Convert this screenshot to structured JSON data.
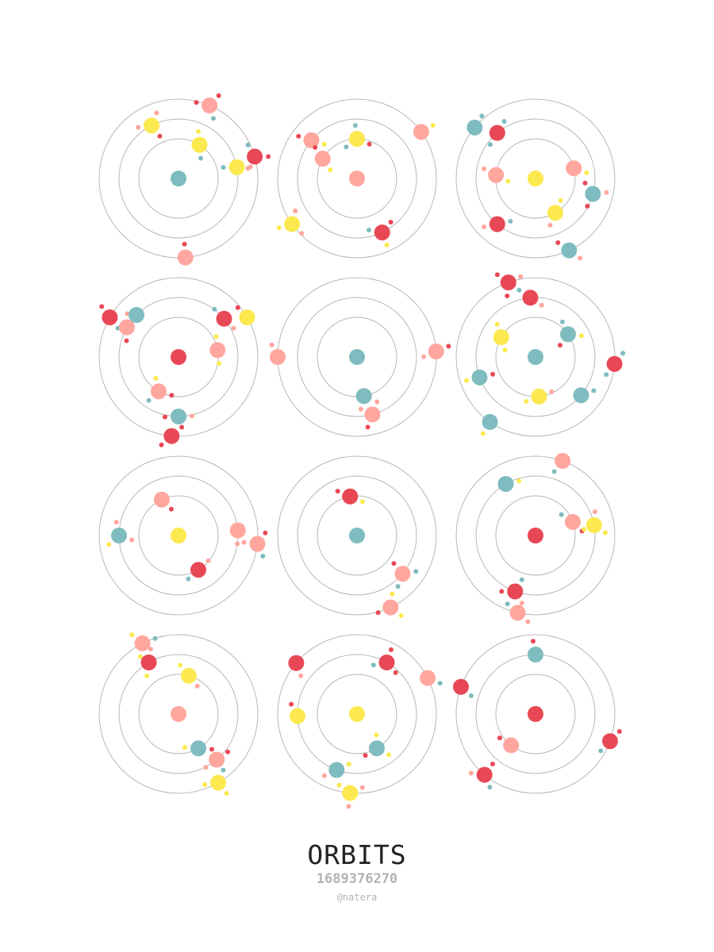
{
  "title": "ORBITS",
  "seed": "1689376270",
  "author": "@natera",
  "colors": {
    "red": "#e84855",
    "salmon": "#ffa69e",
    "yellow": "#fce94f",
    "teal": "#7fbcbf",
    "ring": "#b8b8b8",
    "background": "#ffffff"
  },
  "systems": [
    {
      "center": "teal",
      "planets": [
        {
          "ring": 3,
          "angle": 16,
          "color": "red",
          "moons": [
            "red",
            "teal",
            "salmon"
          ]
        },
        {
          "ring": 3,
          "angle": 67,
          "color": "salmon",
          "moons": [
            "red",
            "red",
            "teal"
          ]
        },
        {
          "ring": 3,
          "angle": 275,
          "color": "salmon",
          "moons": [
            "red"
          ]
        },
        {
          "ring": 2,
          "angle": 11,
          "color": "yellow",
          "moons": [
            "teal",
            "salmon"
          ]
        },
        {
          "ring": 2,
          "angle": 117,
          "color": "yellow",
          "moons": [
            "salmon",
            "red",
            "salmon"
          ]
        },
        {
          "ring": 1,
          "angle": 58,
          "color": "yellow",
          "moons": [
            "teal",
            "yellow"
          ]
        }
      ]
    },
    {
      "center": "salmon",
      "planets": [
        {
          "ring": 3,
          "angle": 36,
          "color": "salmon",
          "moons": [
            "yellow"
          ]
        },
        {
          "ring": 3,
          "angle": 215,
          "color": "yellow",
          "moons": [
            "salmon",
            "yellow",
            "salmon"
          ]
        },
        {
          "ring": 2,
          "angle": 140,
          "color": "salmon",
          "moons": [
            "red",
            "yellow"
          ]
        },
        {
          "ring": 2,
          "angle": 295,
          "color": "red",
          "moons": [
            "teal",
            "yellow",
            "red"
          ]
        },
        {
          "ring": 1,
          "angle": 90,
          "color": "yellow",
          "moons": [
            "teal",
            "red",
            "teal"
          ]
        },
        {
          "ring": 1,
          "angle": 150,
          "color": "salmon",
          "moons": [
            "yellow",
            "red"
          ]
        }
      ]
    },
    {
      "center": "yellow",
      "planets": [
        {
          "ring": 3,
          "angle": 140,
          "color": "teal",
          "moons": [
            "teal"
          ]
        },
        {
          "ring": 3,
          "angle": 295,
          "color": "teal",
          "moons": [
            "red",
            "salmon"
          ]
        },
        {
          "ring": 2,
          "angle": 230,
          "color": "red",
          "moons": [
            "salmon",
            "teal"
          ]
        },
        {
          "ring": 2,
          "angle": 130,
          "color": "red",
          "moons": [
            "teal",
            "teal"
          ]
        },
        {
          "ring": 2,
          "angle": 345,
          "color": "teal",
          "moons": [
            "red",
            "salmon",
            "red"
          ]
        },
        {
          "ring": 1,
          "angle": 175,
          "color": "salmon",
          "moons": [
            "yellow",
            "salmon"
          ]
        },
        {
          "ring": 1,
          "angle": 15,
          "color": "salmon",
          "moons": [
            "yellow"
          ]
        },
        {
          "ring": 1,
          "angle": 300,
          "color": "yellow",
          "moons": [
            "yellow",
            "salmon"
          ]
        }
      ]
    },
    {
      "center": "red",
      "planets": [
        {
          "ring": 3,
          "angle": 150,
          "color": "red",
          "moons": [
            "red",
            "teal"
          ]
        },
        {
          "ring": 3,
          "angle": 30,
          "color": "yellow",
          "moons": [
            "red"
          ]
        },
        {
          "ring": 3,
          "angle": 265,
          "color": "red",
          "moons": [
            "red",
            "red"
          ]
        },
        {
          "ring": 2,
          "angle": 150,
          "color": "salmon",
          "moons": [
            "red",
            "salmon"
          ]
        },
        {
          "ring": 2,
          "angle": 40,
          "color": "red",
          "moons": [
            "salmon",
            "teal"
          ]
        },
        {
          "ring": 2,
          "angle": 270,
          "color": "teal",
          "moons": [
            "salmon",
            "red"
          ]
        },
        {
          "ring": 2,
          "angle": 135,
          "color": "teal",
          "moons": []
        },
        {
          "ring": 1,
          "angle": 10,
          "color": "salmon",
          "moons": [
            "yellow",
            "yellow"
          ]
        },
        {
          "ring": 1,
          "angle": 240,
          "color": "salmon",
          "moons": [
            "yellow",
            "teal",
            "red"
          ]
        }
      ]
    },
    {
      "center": "teal",
      "planets": [
        {
          "ring": 3,
          "angle": 180,
          "color": "salmon",
          "moons": [
            "salmon"
          ]
        },
        {
          "ring": 3,
          "angle": 4,
          "color": "salmon",
          "moons": [
            "salmon",
            "red"
          ]
        },
        {
          "ring": 2,
          "angle": 285,
          "color": "salmon",
          "moons": [
            "red",
            "salmon"
          ]
        },
        {
          "ring": 1,
          "angle": 280,
          "color": "teal",
          "moons": [
            "salmon"
          ]
        }
      ]
    },
    {
      "center": "teal",
      "planets": [
        {
          "ring": 3,
          "angle": 110,
          "color": "red",
          "moons": [
            "red",
            "red",
            "salmon"
          ]
        },
        {
          "ring": 3,
          "angle": 355,
          "color": "red",
          "moons": [
            "teal",
            "teal"
          ]
        },
        {
          "ring": 3,
          "angle": 235,
          "color": "teal",
          "moons": [
            "yellow"
          ]
        },
        {
          "ring": 2,
          "angle": 95,
          "color": "red",
          "moons": [
            "salmon",
            "teal"
          ]
        },
        {
          "ring": 2,
          "angle": 200,
          "color": "teal",
          "moons": [
            "red",
            "yellow"
          ]
        },
        {
          "ring": 2,
          "angle": 320,
          "color": "teal",
          "moons": [
            "teal"
          ]
        },
        {
          "ring": 1,
          "angle": 150,
          "color": "yellow",
          "moons": [
            "yellow",
            "yellow"
          ]
        },
        {
          "ring": 1,
          "angle": 35,
          "color": "teal",
          "moons": [
            "teal",
            "red",
            "yellow"
          ]
        },
        {
          "ring": 1,
          "angle": 275,
          "color": "yellow",
          "moons": [
            "yellow",
            "salmon"
          ]
        }
      ]
    },
    {
      "center": "yellow",
      "planets": [
        {
          "ring": 3,
          "angle": 354,
          "color": "salmon",
          "moons": [
            "salmon",
            "teal",
            "red"
          ]
        },
        {
          "ring": 2,
          "angle": 180,
          "color": "teal",
          "moons": [
            "yellow",
            "salmon",
            "salmon"
          ]
        },
        {
          "ring": 2,
          "angle": 5,
          "color": "salmon",
          "moons": [
            "salmon"
          ]
        },
        {
          "ring": 1,
          "angle": 115,
          "color": "salmon",
          "moons": [
            "red"
          ]
        },
        {
          "ring": 1,
          "angle": 300,
          "color": "red",
          "moons": [
            "salmon",
            "teal"
          ]
        }
      ]
    },
    {
      "center": "teal",
      "planets": [
        {
          "ring": 3,
          "angle": 295,
          "color": "salmon",
          "moons": [
            "red",
            "yellow",
            "yellow"
          ]
        },
        {
          "ring": 2,
          "angle": 320,
          "color": "salmon",
          "moons": [
            "teal",
            "teal",
            "red"
          ]
        },
        {
          "ring": 1,
          "angle": 100,
          "color": "red",
          "moons": [
            "yellow",
            "red"
          ]
        }
      ]
    },
    {
      "center": "red",
      "planets": [
        {
          "ring": 3,
          "angle": 70,
          "color": "salmon",
          "moons": [
            "teal"
          ]
        },
        {
          "ring": 3,
          "angle": 257,
          "color": "salmon",
          "moons": [
            "salmon",
            "teal"
          ]
        },
        {
          "ring": 2,
          "angle": 10,
          "color": "yellow",
          "moons": [
            "yellow",
            "salmon",
            "red"
          ]
        },
        {
          "ring": 2,
          "angle": 120,
          "color": "teal",
          "moons": [
            "yellow"
          ]
        },
        {
          "ring": 2,
          "angle": 250,
          "color": "red",
          "moons": [
            "teal",
            "red",
            "salmon"
          ]
        },
        {
          "ring": 1,
          "angle": 20,
          "color": "salmon",
          "moons": [
            "teal",
            "yellow"
          ]
        }
      ]
    },
    {
      "center": "salmon",
      "planets": [
        {
          "ring": 3,
          "angle": 117,
          "color": "salmon",
          "moons": [
            "yellow",
            "teal",
            "yellow"
          ]
        },
        {
          "ring": 3,
          "angle": 300,
          "color": "yellow",
          "moons": [
            "yellow",
            "teal",
            "yellow"
          ]
        },
        {
          "ring": 2,
          "angle": 310,
          "color": "salmon",
          "moons": [
            "red",
            "salmon"
          ]
        },
        {
          "ring": 2,
          "angle": 120,
          "color": "red",
          "moons": [
            "salmon",
            "yellow"
          ]
        },
        {
          "ring": 1,
          "angle": 75,
          "color": "yellow",
          "moons": [
            "yellow",
            "salmon"
          ]
        },
        {
          "ring": 1,
          "angle": 300,
          "color": "teal",
          "moons": [
            "yellow",
            "red"
          ]
        }
      ]
    },
    {
      "center": "yellow",
      "planets": [
        {
          "ring": 3,
          "angle": 140,
          "color": "red",
          "moons": [
            "salmon"
          ]
        },
        {
          "ring": 3,
          "angle": 27,
          "color": "salmon",
          "moons": [
            "teal"
          ]
        },
        {
          "ring": 3,
          "angle": 265,
          "color": "yellow",
          "moons": [
            "salmon",
            "yellow",
            "salmon"
          ]
        },
        {
          "ring": 2,
          "angle": 60,
          "color": "red",
          "moons": [
            "red",
            "teal",
            "red"
          ]
        },
        {
          "ring": 2,
          "angle": 182,
          "color": "yellow",
          "moons": [
            "red"
          ]
        },
        {
          "ring": 2,
          "angle": 250,
          "color": "teal",
          "moons": [
            "salmon",
            "yellow"
          ]
        },
        {
          "ring": 1,
          "angle": 300,
          "color": "teal",
          "moons": [
            "red",
            "yellow",
            "yellow"
          ]
        }
      ]
    },
    {
      "center": "red",
      "planets": [
        {
          "ring": 3,
          "angle": 160,
          "color": "red",
          "moons": [
            "teal"
          ]
        },
        {
          "ring": 3,
          "angle": 340,
          "color": "red",
          "moons": [
            "red",
            "teal"
          ]
        },
        {
          "ring": 3,
          "angle": 230,
          "color": "red",
          "moons": [
            "red",
            "salmon",
            "teal"
          ]
        },
        {
          "ring": 2,
          "angle": 90,
          "color": "teal",
          "moons": [
            "red"
          ]
        },
        {
          "ring": 1,
          "angle": 232,
          "color": "salmon",
          "moons": [
            "red"
          ]
        }
      ]
    }
  ]
}
